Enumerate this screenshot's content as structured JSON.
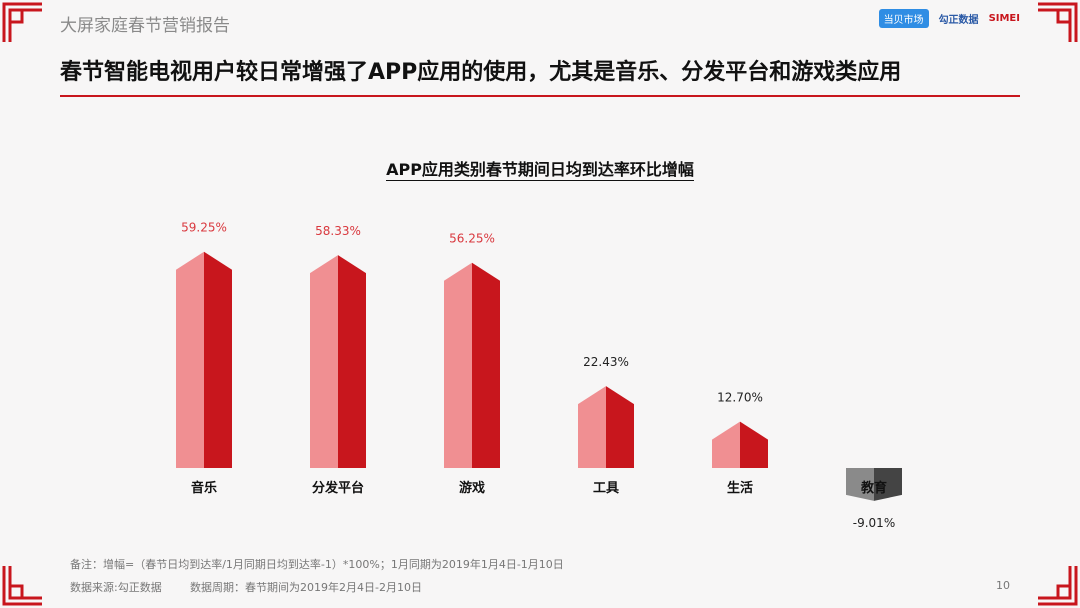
{
  "header": {
    "report_title": "大屏家庭春节营销报告",
    "headline": "春节智能电视用户较日常增强了APP应用的使用，尤其是音乐、分发平台和游戏类应用",
    "logos": [
      {
        "name": "dangbei-logo",
        "text": "当贝市场"
      },
      {
        "name": "gozen-logo",
        "text": "勾正数据"
      },
      {
        "name": "simei-logo",
        "text": "SIMEI"
      }
    ]
  },
  "chart_data": {
    "type": "bar",
    "title": "APP应用类别春节期间日均到达率环比增幅",
    "categories": [
      "音乐",
      "分发平台",
      "游戏",
      "工具",
      "生活",
      "教育"
    ],
    "values": [
      59.25,
      58.33,
      56.25,
      22.43,
      12.7,
      -9.01
    ],
    "value_labels": [
      "59.25%",
      "58.33%",
      "56.25%",
      "22.43%",
      "12.70%",
      "-9.01%"
    ],
    "colors": {
      "positive_front": "#f08f92",
      "positive_side": "#c8161d",
      "negative_front": "#8a8a8a",
      "negative_side": "#444444",
      "positive_label": "#d9383e",
      "negative_label": "#222222"
    }
  },
  "footer": {
    "note": "备注：增幅=（春节日均到达率/1月同期日均到达率-1）*100%；1月同期为2019年1月4日-1月10日",
    "source": "数据来源:勾正数据",
    "period": "数据周期：春节期间为2019年2月4日-2月10日",
    "page": "10"
  }
}
